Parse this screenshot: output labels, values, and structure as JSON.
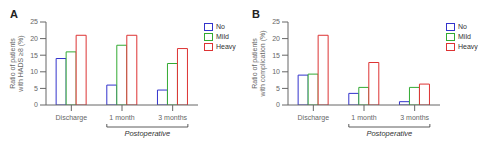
{
  "chart_data": [
    {
      "type": "bar",
      "title": "A",
      "ylabel": "Ratio of patients with HADS ≥8 (%)",
      "categories": [
        "Discharge",
        "1 month",
        "3 months"
      ],
      "series": [
        {
          "name": "No",
          "color": "#3333cc",
          "values": [
            14,
            6,
            4.5
          ]
        },
        {
          "name": "Mild",
          "color": "#33aa33",
          "values": [
            16,
            18,
            12.5
          ]
        },
        {
          "name": "Heavy",
          "color": "#dd3333",
          "values": [
            21,
            21,
            17
          ]
        }
      ],
      "ylim": [
        0,
        25
      ],
      "yticks": [
        0,
        5,
        10,
        15,
        20,
        25
      ],
      "annotation": "Postoperative",
      "legend": "upper right",
      "grid": false
    },
    {
      "type": "bar",
      "title": "B",
      "ylabel": "Ratio of patients with complication (%)",
      "categories": [
        "Discharge",
        "1 month",
        "3 months"
      ],
      "series": [
        {
          "name": "No",
          "color": "#3333cc",
          "values": [
            9,
            3.5,
            1
          ]
        },
        {
          "name": "Mild",
          "color": "#33aa33",
          "values": [
            9.3,
            5.3,
            5.3
          ]
        },
        {
          "name": "Heavy",
          "color": "#dd3333",
          "values": [
            21,
            12.8,
            6.3
          ]
        }
      ],
      "ylim": [
        0,
        25
      ],
      "yticks": [
        0,
        5,
        10,
        15,
        20,
        25
      ],
      "annotation": "Postoperative",
      "legend": "upper right",
      "grid": false
    }
  ]
}
